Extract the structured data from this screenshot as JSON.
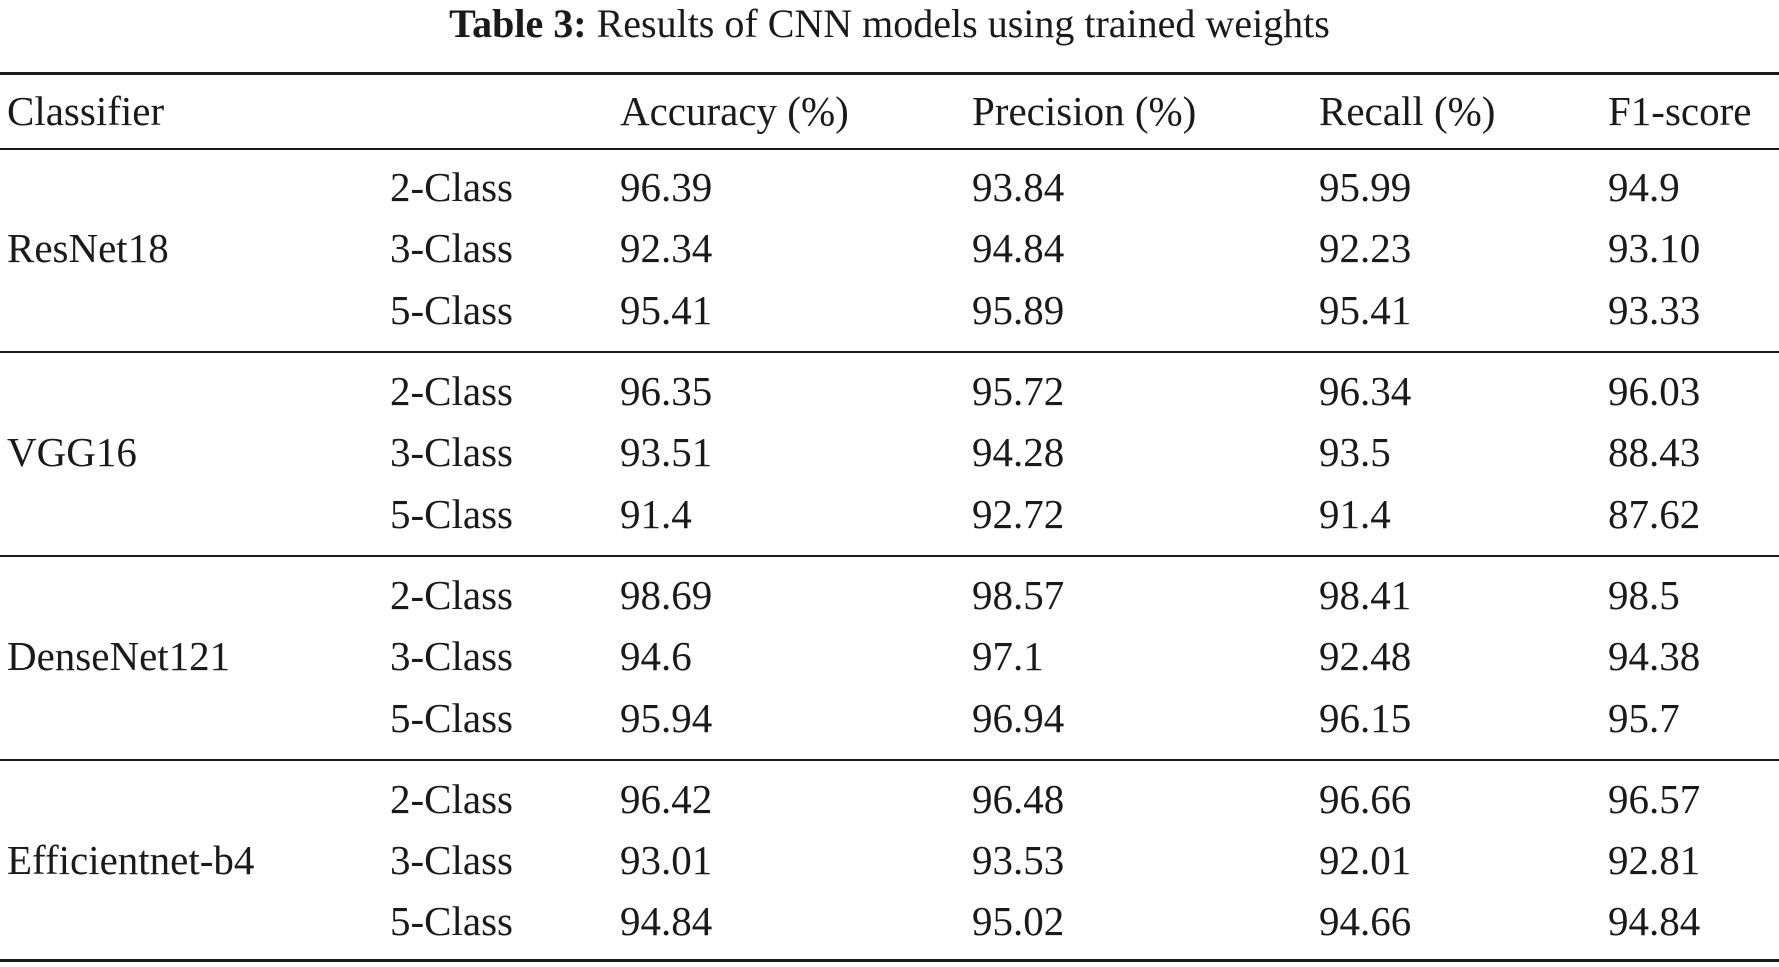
{
  "caption": {
    "label": "Table 3:",
    "text": "Results of CNN models using trained weights"
  },
  "headers": {
    "classifier": "Classifier",
    "accuracy": "Accuracy (%)",
    "precision": "Precision (%)",
    "recall": "Recall (%)",
    "f1": "F1-score"
  },
  "groups": [
    {
      "model": "ResNet18",
      "rows": [
        {
          "cls": "2-Class",
          "acc": "96.39",
          "prec": "93.84",
          "rec": "95.99",
          "f1": "94.9"
        },
        {
          "cls": "3-Class",
          "acc": "92.34",
          "prec": "94.84",
          "rec": "92.23",
          "f1": "93.10"
        },
        {
          "cls": "5-Class",
          "acc": "95.41",
          "prec": "95.89",
          "rec": "95.41",
          "f1": "93.33"
        }
      ]
    },
    {
      "model": "VGG16",
      "rows": [
        {
          "cls": "2-Class",
          "acc": "96.35",
          "prec": "95.72",
          "rec": "96.34",
          "f1": "96.03"
        },
        {
          "cls": "3-Class",
          "acc": "93.51",
          "prec": "94.28",
          "rec": "93.5",
          "f1": "88.43"
        },
        {
          "cls": "5-Class",
          "acc": "91.4",
          "prec": "92.72",
          "rec": "91.4",
          "f1": "87.62"
        }
      ]
    },
    {
      "model": "DenseNet121",
      "rows": [
        {
          "cls": "2-Class",
          "acc": "98.69",
          "prec": "98.57",
          "rec": "98.41",
          "f1": "98.5"
        },
        {
          "cls": "3-Class",
          "acc": "94.6",
          "prec": "97.1",
          "rec": "92.48",
          "f1": "94.38"
        },
        {
          "cls": "5-Class",
          "acc": "95.94",
          "prec": "96.94",
          "rec": "96.15",
          "f1": "95.7"
        }
      ]
    },
    {
      "model": "Efficientnet-b4",
      "rows": [
        {
          "cls": "2-Class",
          "acc": "96.42",
          "prec": "96.48",
          "rec": "96.66",
          "f1": "96.57"
        },
        {
          "cls": "3-Class",
          "acc": "93.01",
          "prec": "93.53",
          "rec": "92.01",
          "f1": "92.81"
        },
        {
          "cls": "5-Class",
          "acc": "94.84",
          "prec": "95.02",
          "rec": "94.66",
          "f1": "94.84"
        }
      ]
    }
  ]
}
